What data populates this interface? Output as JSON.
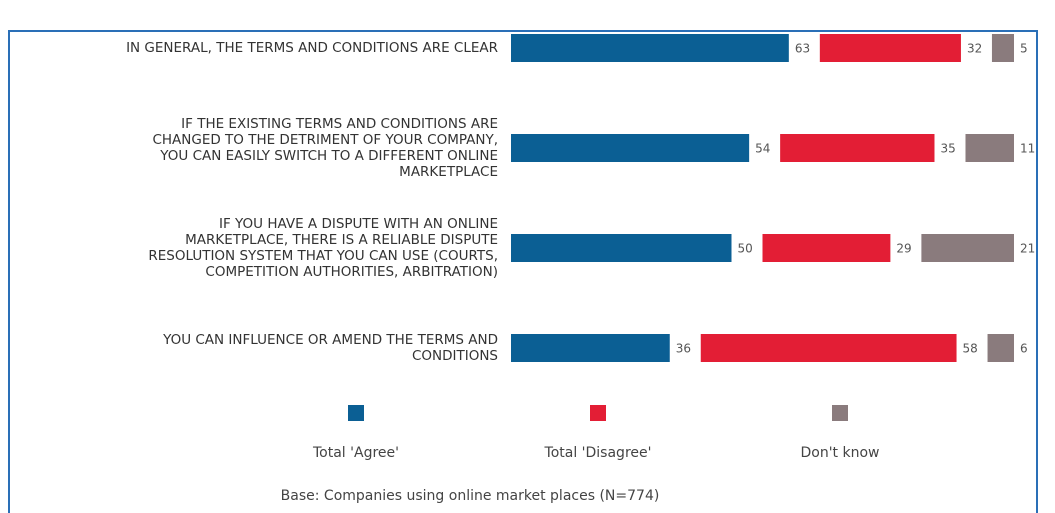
{
  "chart_data": {
    "type": "bar",
    "stacked": true,
    "categories": [
      "IN GENERAL, THE TERMS AND CONDITIONS ARE CLEAR",
      "IF THE EXISTING TERMS AND CONDITIONS ARE\nCHANGED TO THE DETRIMENT OF YOUR COMPANY,\nYOU CAN EASILY SWITCH TO A DIFFERENT ONLINE\nMARKETPLACE",
      "IF YOU HAVE A DISPUTE WITH AN ONLINE\nMARKETPLACE, THERE IS A RELIABLE DISPUTE\nRESOLUTION SYSTEM THAT YOU CAN USE (COURTS,\nCOMPETITION AUTHORITIES, ARBITRATION)",
      "YOU CAN INFLUENCE OR AMEND THE TERMS AND\nCONDITIONS"
    ],
    "series": [
      {
        "name": "Total 'Agree'",
        "color": "#0b5f94",
        "values": [
          63,
          54,
          50,
          36
        ]
      },
      {
        "name": "Total 'Disagree'",
        "color": "#e31e35",
        "values": [
          32,
          35,
          29,
          58
        ]
      },
      {
        "name": "Don't know",
        "color": "#8a7b7d",
        "values": [
          5,
          11,
          21,
          6
        ]
      }
    ],
    "note": "Base: Companies using online market places (N=774)"
  }
}
